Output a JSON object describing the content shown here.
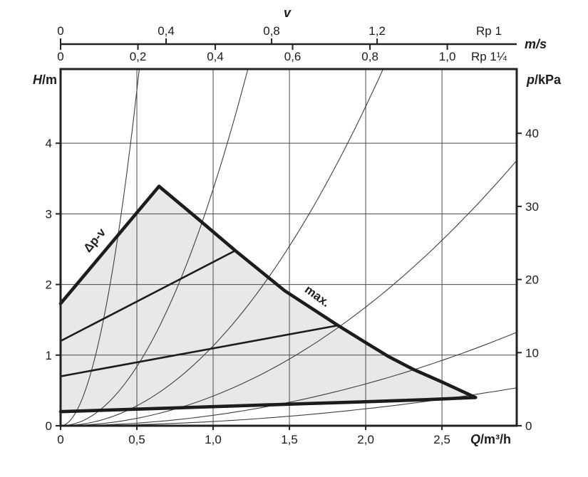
{
  "colors": {
    "ink": "#1c1c1c",
    "frame": "#222222",
    "grid": "#4a4a4a",
    "thin_curve": "#3f3f3f",
    "envelope_fill": "#e8e8e8",
    "background": "#ffffff"
  },
  "chart_data": {
    "type": "line",
    "title": "",
    "x_axis": {
      "label_italic": "Q",
      "label_rest": "/m³/h",
      "range": [
        0,
        2.99
      ],
      "ticks": [
        {
          "q": 0,
          "label": "0"
        },
        {
          "q": 0.5,
          "label": "0,5"
        },
        {
          "q": 1.0,
          "label": "1,0"
        },
        {
          "q": 1.5,
          "label": "1,5"
        },
        {
          "q": 2.0,
          "label": "2,0"
        },
        {
          "q": 2.5,
          "label": "2,5"
        }
      ]
    },
    "y_axis": {
      "label_italic": "H",
      "label_rest": "/m",
      "range": [
        0,
        5.05
      ],
      "ticks": [
        {
          "h": 0,
          "label": "0"
        },
        {
          "h": 1,
          "label": "1"
        },
        {
          "h": 2,
          "label": "2"
        },
        {
          "h": 3,
          "label": "3"
        },
        {
          "h": 4,
          "label": "4"
        }
      ]
    },
    "y_axis_right": {
      "label_italic": "p",
      "label_rest": "/kPa",
      "kpa_per_m": 9.66,
      "ticks": [
        {
          "p": 0,
          "label": "0"
        },
        {
          "p": 10,
          "label": "10"
        },
        {
          "p": 20,
          "label": "20"
        },
        {
          "p": 30,
          "label": "30"
        },
        {
          "p": 40,
          "label": "40"
        }
      ]
    },
    "top_axis": {
      "title": "v",
      "unit": "m/s",
      "scales": [
        {
          "name": "Rp 1",
          "side": "above",
          "q_per_unit": 1.729,
          "ticks": [
            {
              "v": 0.0,
              "label": "0"
            },
            {
              "v": 0.4,
              "label": "0,4"
            },
            {
              "v": 0.8,
              "label": "0,8"
            },
            {
              "v": 1.2,
              "label": "1,2"
            }
          ]
        },
        {
          "name": "Rp 1¼",
          "side": "below",
          "q_per_unit": 2.535,
          "ticks": [
            {
              "v": 0.0,
              "label": "0"
            },
            {
              "v": 0.2,
              "label": "0,2"
            },
            {
              "v": 0.4,
              "label": "0,4"
            },
            {
              "v": 0.6,
              "label": "0,6"
            },
            {
              "v": 0.8,
              "label": "0,8"
            },
            {
              "v": 1.0,
              "label": "1,0"
            }
          ]
        }
      ]
    },
    "envelope": {
      "rise": [
        [
          0,
          1.73
        ],
        [
          0.645,
          3.39
        ]
      ],
      "max": [
        [
          0.645,
          3.39
        ],
        [
          0.9,
          2.93
        ],
        [
          1.145,
          2.48
        ],
        [
          1.47,
          1.91
        ],
        [
          1.818,
          1.42
        ],
        [
          1.99,
          1.19
        ],
        [
          2.15,
          0.98
        ],
        [
          2.31,
          0.8
        ],
        [
          2.5,
          0.62
        ],
        [
          2.72,
          0.4
        ]
      ],
      "min": [
        [
          0,
          0.2
        ],
        [
          0.5,
          0.235
        ],
        [
          1.0,
          0.27
        ],
        [
          1.5,
          0.305
        ],
        [
          2.0,
          0.34
        ],
        [
          2.4,
          0.37
        ],
        [
          2.72,
          0.4
        ]
      ]
    },
    "control_curves": [
      [
        [
          0,
          1.2
        ],
        [
          1.145,
          2.48
        ]
      ],
      [
        [
          0,
          0.7
        ],
        [
          1.818,
          1.42
        ]
      ]
    ],
    "system_curves": [
      {
        "k": 19.0
      },
      {
        "k": 3.35
      },
      {
        "k": 1.13
      },
      {
        "k": 0.42
      },
      {
        "k": 0.148
      },
      {
        "k": 0.06
      }
    ],
    "annotations": [
      {
        "text": "Δp-v",
        "q": 0.243,
        "h": 2.59,
        "angle": -50
      },
      {
        "text": "max.",
        "q": 1.668,
        "h": 1.79,
        "angle": 36
      }
    ]
  }
}
